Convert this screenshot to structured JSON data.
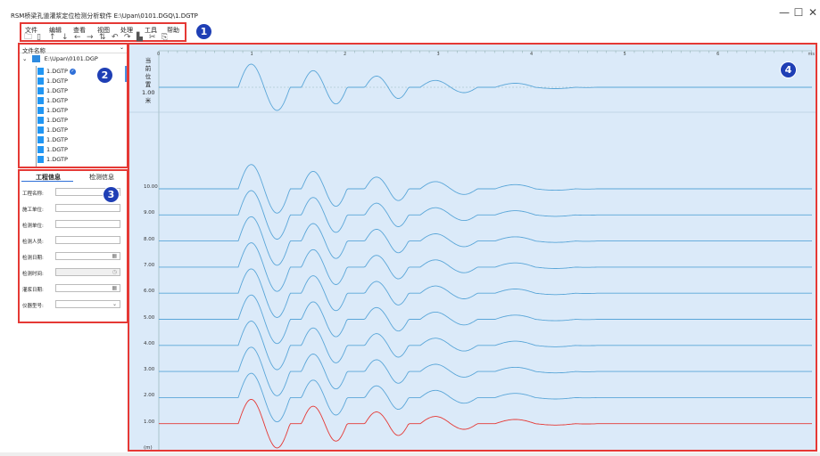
{
  "window": {
    "title": "RSM桥梁孔道灌浆定位检测分析软件 E:\\Upan\\0101.DGQ\\1.DGTP",
    "minimize": "—",
    "maximize": "☐",
    "close": "✕"
  },
  "menu": [
    "文件",
    "编辑",
    "查看",
    "视图",
    "处理",
    "工具",
    "帮助"
  ],
  "toolbar_icons": [
    "folder-icon",
    "save-icon",
    "arrow-up-icon",
    "arrow-down-icon",
    "arrow-left-icon",
    "arrow-right-icon",
    "swap-icon",
    "undo-icon",
    "redo-icon",
    "chart-icon",
    "cut-icon",
    "export-icon"
  ],
  "badges": [
    "1",
    "2",
    "3",
    "4"
  ],
  "tree": {
    "header": "文件名称",
    "root": "E:\\Upan\\0101.DGP",
    "files": [
      "1.DGTP",
      "1.DGTP",
      "1.DGTP",
      "1.DGTP",
      "1.DGTP",
      "1.DGTP",
      "1.DGTP",
      "1.DGTP",
      "1.DGTP",
      "1.DGTP"
    ]
  },
  "info": {
    "tabs": [
      "工程信息",
      "检测信息"
    ],
    "fields": [
      "工程名称:",
      "施工单位:",
      "检测单位:",
      "检测人员:",
      "检测日期:",
      "检测时间:",
      "灌浆日期:",
      "仪器型号:"
    ]
  },
  "plot": {
    "top_label": [
      "当",
      "前",
      "位",
      "置",
      "1.00",
      "米"
    ],
    "x_ticks": [
      "0",
      "1",
      "2",
      "3",
      "4",
      "5",
      "6",
      "ms"
    ],
    "y_labels": [
      "10.00",
      "9.00",
      "8.00",
      "7.00",
      "6.00",
      "5.00",
      "4.00",
      "3.00",
      "2.00",
      "1.00",
      "(m)"
    ],
    "colors": {
      "trace": "#5aa6d8",
      "highlight": "#e53935",
      "background": "#dbeaf9"
    }
  }
}
